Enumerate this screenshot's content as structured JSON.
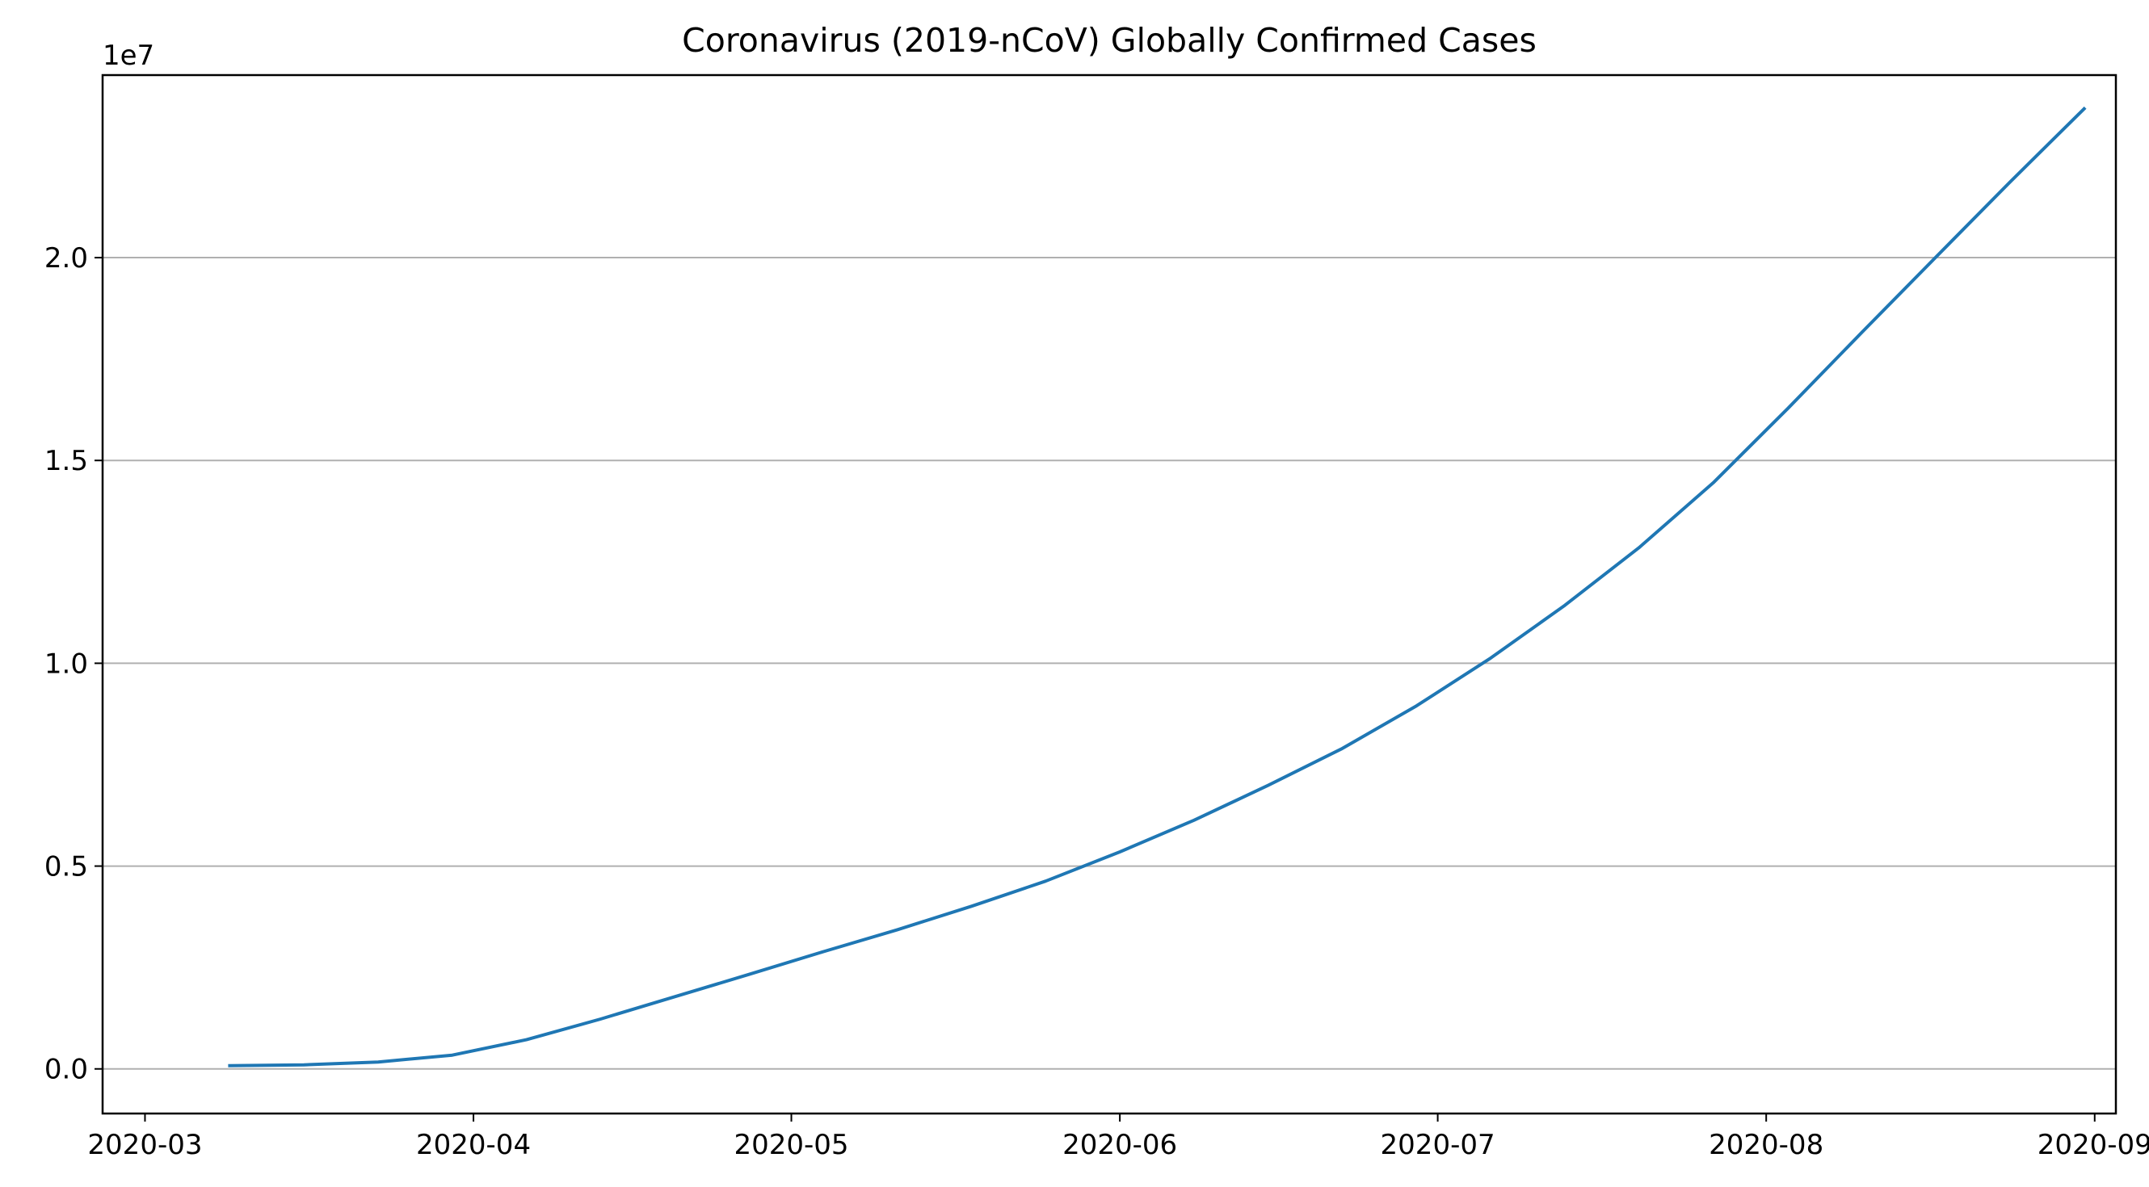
{
  "chart_data": {
    "type": "line",
    "title": "Coronavirus (2019-nCoV) Globally Confirmed Cases",
    "xlabel": "",
    "ylabel": "",
    "y_offset_label": "1e7",
    "x_scale": "time",
    "xlim": [
      "2020-02-26",
      "2020-09-03"
    ],
    "ylim": [
      -1100000,
      24500000
    ],
    "x_ticks": [
      "2020-03-01",
      "2020-04-01",
      "2020-05-01",
      "2020-06-01",
      "2020-07-01",
      "2020-08-01",
      "2020-09-01"
    ],
    "x_tick_labels": [
      "2020-03",
      "2020-04",
      "2020-05",
      "2020-06",
      "2020-07",
      "2020-08",
      "2020-09"
    ],
    "y_ticks": [
      0,
      5000000,
      10000000,
      15000000,
      20000000
    ],
    "y_tick_labels": [
      "0.0",
      "0.5",
      "1.0",
      "1.5",
      "2.0"
    ],
    "grid": "horizontal",
    "legend": "none",
    "colors": {
      "line": "#1f77b4",
      "grid": "#b0b0b0",
      "axes": "#000000"
    },
    "series": [
      {
        "x": [
          "2020-03-09",
          "2020-03-16",
          "2020-03-23",
          "2020-03-30",
          "2020-04-06",
          "2020-04-13",
          "2020-04-20",
          "2020-04-27",
          "2020-05-04",
          "2020-05-11",
          "2020-05-18",
          "2020-05-25",
          "2020-06-01",
          "2020-06-08",
          "2020-06-15",
          "2020-06-22",
          "2020-06-29",
          "2020-07-06",
          "2020-07-13",
          "2020-07-20",
          "2020-07-27",
          "2020-08-03",
          "2020-08-10",
          "2020-08-17",
          "2020-08-24",
          "2020-08-31"
        ],
        "y": [
          80000,
          100000,
          170000,
          340000,
          720000,
          1230000,
          1780000,
          2330000,
          2890000,
          3430000,
          4010000,
          4630000,
          5350000,
          6130000,
          6990000,
          7900000,
          8950000,
          10130000,
          11430000,
          12850000,
          14450000,
          16270000,
          18150000,
          20010000,
          21860000,
          23670000
        ]
      }
    ]
  }
}
